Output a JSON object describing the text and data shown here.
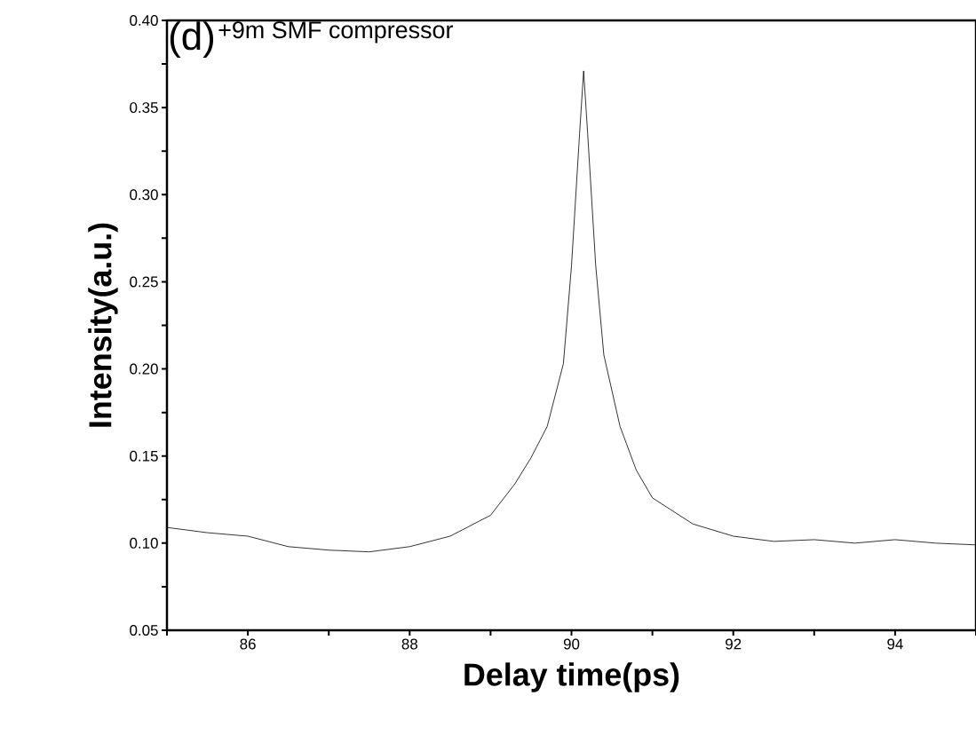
{
  "chart_data": {
    "type": "line",
    "xlabel": "Delay time(ps)",
    "ylabel": "Intensity(a.u.)",
    "annotations": [
      "(d)",
      "+9m SMF compressor"
    ],
    "xlim": [
      85,
      95
    ],
    "ylim": [
      0.05,
      0.4
    ],
    "xticks": [
      {
        "value": 85,
        "label": null
      },
      86,
      {
        "value": 87,
        "label": null
      },
      88,
      {
        "value": 89,
        "label": null
      },
      90,
      {
        "value": 91,
        "label": null
      },
      92,
      {
        "value": 93,
        "label": null
      },
      94,
      {
        "value": 95,
        "label": null
      }
    ],
    "yticks": [
      {
        "value": 0.05,
        "label": "0.05"
      },
      {
        "value": 0.075,
        "label": null
      },
      {
        "value": 0.1,
        "label": "0.10"
      },
      {
        "value": 0.125,
        "label": null
      },
      {
        "value": 0.15,
        "label": "0.15"
      },
      {
        "value": 0.175,
        "label": null
      },
      {
        "value": 0.2,
        "label": "0.20"
      },
      {
        "value": 0.225,
        "label": null
      },
      {
        "value": 0.25,
        "label": "0.25"
      },
      {
        "value": 0.275,
        "label": null
      },
      {
        "value": 0.3,
        "label": "0.30"
      },
      {
        "value": 0.325,
        "label": null
      },
      {
        "value": 0.35,
        "label": "0.35"
      },
      {
        "value": 0.375,
        "label": null
      },
      {
        "value": 0.4,
        "label": "0.40"
      }
    ],
    "grid": false,
    "marker": "none",
    "line_style": "solid",
    "series": [
      {
        "color": "#000000",
        "x": [
          85,
          85.5,
          86,
          86.5,
          87,
          87.5,
          88,
          88.5,
          89,
          89.3,
          89.5,
          89.7,
          89.9,
          90.0,
          90.1,
          90.15,
          90.2,
          90.3,
          90.4,
          90.6,
          90.8,
          91,
          91.5,
          92,
          92.5,
          93,
          93.5,
          94,
          94.5,
          95
        ],
        "values": [
          0.109,
          0.106,
          0.104,
          0.098,
          0.096,
          0.095,
          0.098,
          0.104,
          0.116,
          0.134,
          0.149,
          0.167,
          0.203,
          0.259,
          0.335,
          0.371,
          0.335,
          0.259,
          0.208,
          0.167,
          0.142,
          0.126,
          0.111,
          0.104,
          0.101,
          0.102,
          0.1,
          0.102,
          0.1,
          0.099
        ]
      }
    ]
  }
}
